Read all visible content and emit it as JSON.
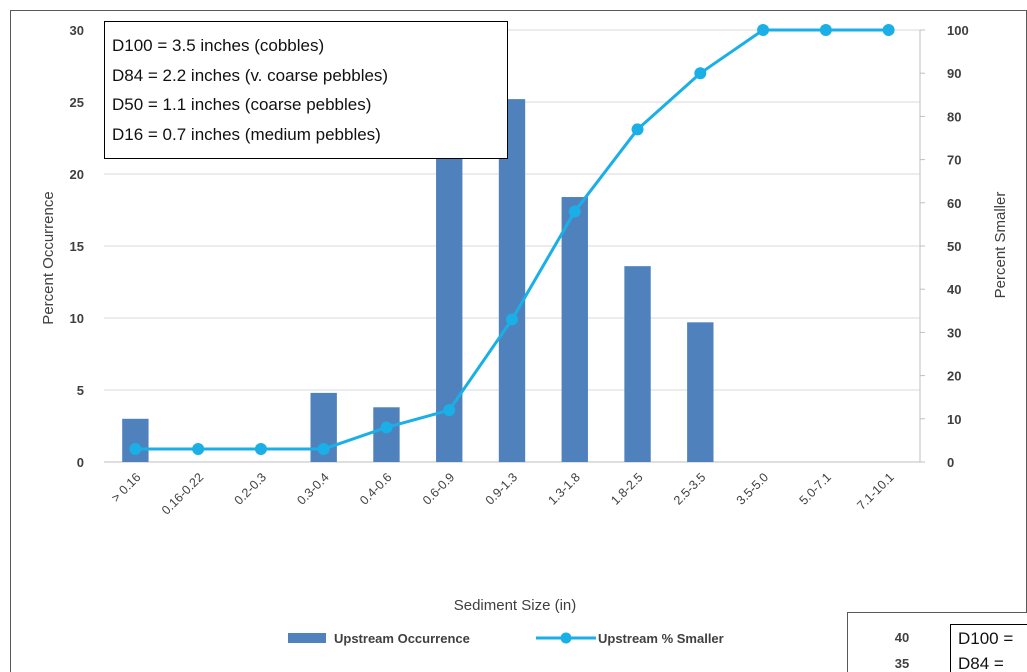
{
  "chart_data": [
    {
      "type": "bar+line",
      "categories": [
        "> 0.16",
        "0.16-0.22",
        "0.2-0.3",
        "0.3-0.4",
        "0.4-0.6",
        "0.6-0.9",
        "0.9-1.3",
        "1.3-1.8",
        "1.8-2.5",
        "2.5-3.5",
        "3.5-5.0",
        "5.0-7.1",
        "7.1-10.1"
      ],
      "series": [
        {
          "name": "Upstream Occurrence",
          "type": "bar",
          "axis": "left",
          "color": "#4F81BD",
          "values": [
            3.0,
            0,
            0,
            4.8,
            3.8,
            21.4,
            25.2,
            18.4,
            13.6,
            9.7,
            0,
            0,
            0
          ]
        },
        {
          "name": "Upstream % Smaller",
          "type": "line",
          "axis": "right",
          "color": "#1AAFE6",
          "values": [
            3,
            3,
            3,
            3,
            8,
            12,
            33,
            58,
            77,
            90,
            100,
            100,
            100
          ]
        }
      ],
      "xlabel": "Sediment Size (in)",
      "ylabel": "Percent Occurrence",
      "y2label": "Percent Smaller",
      "ylim": [
        0,
        30
      ],
      "y2lim": [
        0,
        100
      ],
      "yticks": [
        0,
        5,
        10,
        15,
        20,
        25,
        30
      ],
      "y2ticks": [
        0,
        10,
        20,
        30,
        40,
        50,
        60,
        70,
        80,
        90,
        100
      ],
      "grid": true,
      "legend_position": "bottom",
      "annotations": [
        "D100 = 3.5 inches (cobbles)",
        "D84 = 2.2 inches (v. coarse pebbles)",
        "D50 = 1.1 inches (coarse pebbles)",
        "D16 = 0.7 inches (medium pebbles)"
      ]
    },
    {
      "type": "bar+line",
      "partial": true,
      "yticks": [
        35,
        40
      ],
      "annotations": [
        "D100 =",
        "D84 = "
      ]
    }
  ]
}
